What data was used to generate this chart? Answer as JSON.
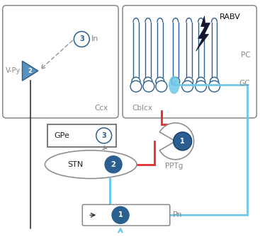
{
  "fig_width": 3.67,
  "fig_height": 3.34,
  "dpi": 100,
  "bg_color": "#ffffff",
  "mid_blue": "#2a5f8f",
  "light_blue": "#70c8e8",
  "light_blue2": "#90d0e8",
  "red_color": "#e03030",
  "gray_color": "#888888",
  "dark_gray": "#555555",
  "dark_navy": "#151530",
  "ccx_label": "Ccx",
  "cblcx_label": "Cblcx",
  "gpe_label": "GPe",
  "stn_label": "STN",
  "pptg_label": "PPTg",
  "pn_label": "Pn",
  "in_label": "In",
  "vpy_label": "V-Py",
  "pc_label": "PC",
  "gc_label": "GC",
  "rabv_label": "RABV"
}
